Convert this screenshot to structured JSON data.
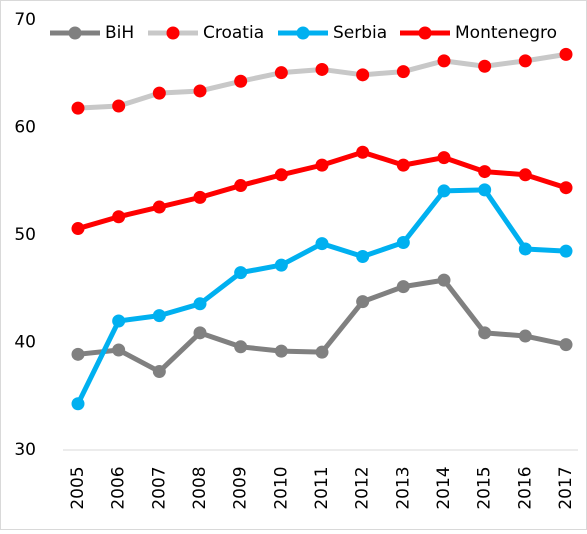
{
  "chart_data": {
    "type": "line",
    "x": [
      "2005",
      "2006",
      "2007",
      "2008",
      "2009",
      "2010",
      "2011",
      "2012",
      "2013",
      "2014",
      "2015",
      "2016",
      "2017"
    ],
    "series": [
      {
        "name": "BiH",
        "color": "#808080",
        "marker_color": "#808080",
        "values": [
          38.9,
          39.3,
          37.3,
          40.9,
          39.6,
          39.2,
          39.1,
          43.8,
          45.2,
          45.8,
          40.9,
          40.6,
          39.8
        ]
      },
      {
        "name": "Croatia",
        "color": "#c8c8c8",
        "marker_color": "#ff0000",
        "values": [
          61.8,
          62.0,
          63.2,
          63.4,
          64.3,
          65.1,
          65.4,
          64.9,
          65.2,
          66.2,
          65.7,
          66.2,
          66.8
        ]
      },
      {
        "name": "Serbia",
        "color": "#00b0f0",
        "marker_color": "#00b0f0",
        "values": [
          34.3,
          42.0,
          42.5,
          43.6,
          46.5,
          47.2,
          49.2,
          48.0,
          49.3,
          54.1,
          54.2,
          48.7,
          48.5
        ]
      },
      {
        "name": "Montenegro",
        "color": "#ff0000",
        "marker_color": "#ff0000",
        "values": [
          50.6,
          51.7,
          52.6,
          53.5,
          54.6,
          55.6,
          56.5,
          57.7,
          56.5,
          57.2,
          55.9,
          55.6,
          54.4
        ]
      }
    ],
    "ylim": [
      30,
      70
    ],
    "yticks": [
      30,
      40,
      50,
      60,
      70
    ],
    "grid": false,
    "legend": "top"
  }
}
